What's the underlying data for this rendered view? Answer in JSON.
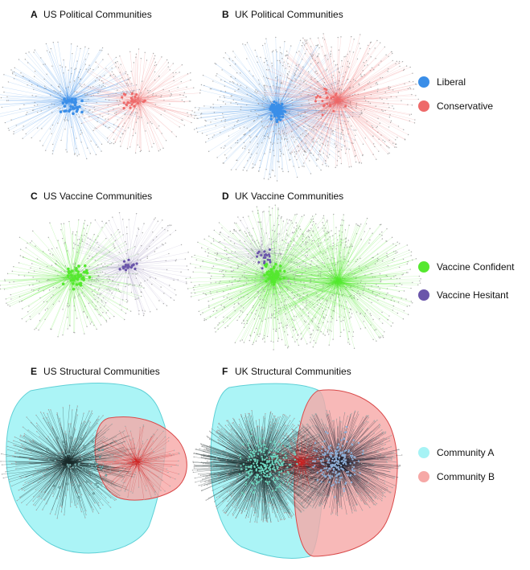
{
  "panels": [
    {
      "id": "A",
      "title": "US Political Communities",
      "kind": "political",
      "country": "US"
    },
    {
      "id": "B",
      "title": "UK Political Communities",
      "kind": "political",
      "country": "UK"
    },
    {
      "id": "C",
      "title": "US Vaccine Communities",
      "kind": "vaccine",
      "country": "US"
    },
    {
      "id": "D",
      "title": "UK Vaccine Communities",
      "kind": "vaccine",
      "country": "UK"
    },
    {
      "id": "E",
      "title": "US Structural Communities",
      "kind": "structural",
      "country": "US"
    },
    {
      "id": "F",
      "title": "UK Structural Communities",
      "kind": "structural",
      "country": "UK"
    }
  ],
  "legends": [
    {
      "items": [
        {
          "label": "Liberal",
          "color": "#3a8ee8"
        },
        {
          "label": "Conservative",
          "color": "#ee6a6a"
        }
      ]
    },
    {
      "items": [
        {
          "label": "Vaccine Confident",
          "color": "#55e82f"
        },
        {
          "label": "Vaccine Hesitant",
          "color": "#6a55aa"
        }
      ]
    },
    {
      "items": [
        {
          "label": "Community A",
          "color": "#a6f3f5"
        },
        {
          "label": "Community B",
          "color": "#f6a8a6"
        }
      ]
    }
  ],
  "colors": {
    "liberal": "#3a8ee8",
    "conservative": "#ee6a6a",
    "confident": "#55e82f",
    "hesitant": "#6a55aa",
    "communityA": "#a6f3f5",
    "communityB": "#f6a8a6",
    "communityBorderA": "#5fd0d6",
    "communityBorderB": "#d94a4a"
  }
}
